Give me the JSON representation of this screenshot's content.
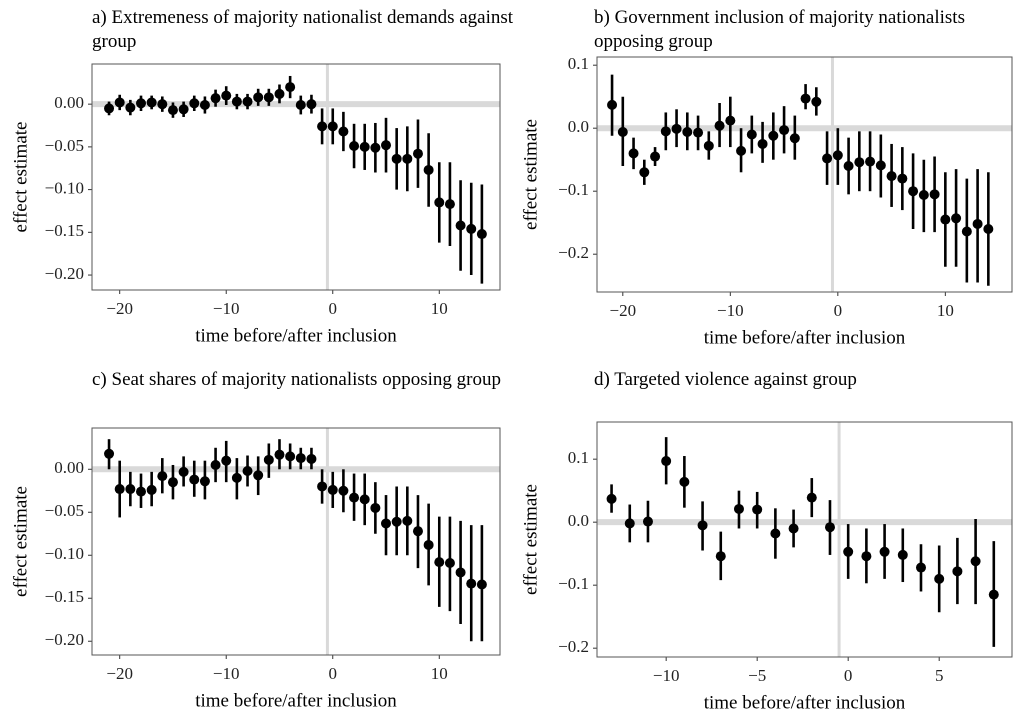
{
  "chart_data": [
    {
      "type": "errorbar",
      "title": "a) Extremeness of majority nationalist demands against group",
      "xlabel": "time before/after inclusion",
      "ylabel": "effect estimate",
      "color": "#000000",
      "ref_color": "#d9d9d9",
      "hline": 0,
      "vline": -0.5,
      "x": [
        -21,
        -20,
        -19,
        -18,
        -17,
        -16,
        -15,
        -14,
        -13,
        -12,
        -11,
        -10,
        -9,
        -8,
        -7,
        -6,
        -5,
        -4,
        -3,
        -2,
        -1,
        0,
        1,
        2,
        3,
        4,
        5,
        6,
        7,
        8,
        9,
        10,
        11,
        12,
        13,
        14
      ],
      "values": [
        -0.005,
        0.002,
        -0.004,
        0.001,
        0.002,
        0.0,
        -0.007,
        -0.006,
        0.001,
        -0.001,
        0.007,
        0.01,
        0.003,
        0.003,
        0.008,
        0.008,
        0.012,
        0.02,
        -0.001,
        0.0,
        -0.026,
        -0.026,
        -0.032,
        -0.049,
        -0.05,
        -0.051,
        -0.048,
        -0.064,
        -0.064,
        -0.058,
        -0.077,
        -0.115,
        -0.117,
        -0.142,
        -0.146,
        -0.152
      ],
      "lower": [
        -0.013,
        -0.007,
        -0.013,
        -0.008,
        -0.006,
        -0.009,
        -0.016,
        -0.015,
        -0.008,
        -0.011,
        -0.003,
        -0.001,
        -0.006,
        -0.006,
        -0.002,
        -0.002,
        0.001,
        0.007,
        -0.012,
        -0.011,
        -0.047,
        -0.047,
        -0.055,
        -0.075,
        -0.077,
        -0.08,
        -0.08,
        -0.1,
        -0.102,
        -0.098,
        -0.12,
        -0.162,
        -0.166,
        -0.195,
        -0.2,
        -0.21
      ],
      "upper": [
        0.003,
        0.011,
        0.005,
        0.01,
        0.01,
        0.009,
        0.002,
        0.003,
        0.01,
        0.009,
        0.017,
        0.021,
        0.012,
        0.012,
        0.018,
        0.018,
        0.023,
        0.033,
        0.01,
        0.011,
        -0.005,
        -0.005,
        -0.009,
        -0.023,
        -0.023,
        -0.022,
        -0.016,
        -0.028,
        -0.026,
        -0.018,
        -0.034,
        -0.068,
        -0.068,
        -0.089,
        -0.092,
        -0.094
      ],
      "xlim": [
        -22.6,
        15.7
      ],
      "ylim": [
        -0.2175,
        0.047
      ],
      "xticks": [
        {
          "value": -20,
          "label": "−20"
        },
        {
          "value": -10,
          "label": "−10"
        },
        {
          "value": 0,
          "label": "0"
        },
        {
          "value": 10,
          "label": "10"
        }
      ],
      "yticks": [
        {
          "value": 0,
          "label": "0.00"
        },
        {
          "value": -0.05,
          "label": "−0.05"
        },
        {
          "value": -0.1,
          "label": "−0.10"
        },
        {
          "value": -0.15,
          "label": "−0.15"
        },
        {
          "value": -0.2,
          "label": "−0.20"
        }
      ]
    },
    {
      "type": "errorbar",
      "title": "b) Government inclusion of majority nationalists opposing group",
      "xlabel": "time before/after inclusion",
      "ylabel": "effect estimate",
      "color": "#000000",
      "ref_color": "#d9d9d9",
      "hline": 0,
      "vline": -0.5,
      "x": [
        -21,
        -20,
        -19,
        -18,
        -17,
        -16,
        -15,
        -14,
        -13,
        -12,
        -11,
        -10,
        -9,
        -8,
        -7,
        -6,
        -5,
        -4,
        -3,
        -2,
        -1,
        0,
        1,
        2,
        3,
        4,
        5,
        6,
        7,
        8,
        9,
        10,
        11,
        12,
        13,
        14
      ],
      "values": [
        0.037,
        -0.006,
        -0.04,
        -0.07,
        -0.045,
        -0.005,
        -0.001,
        -0.006,
        -0.007,
        -0.028,
        0.004,
        0.012,
        -0.036,
        -0.01,
        -0.025,
        -0.012,
        -0.003,
        -0.016,
        0.047,
        0.042,
        -0.048,
        -0.043,
        -0.06,
        -0.054,
        -0.053,
        -0.059,
        -0.076,
        -0.08,
        -0.1,
        -0.106,
        -0.105,
        -0.145,
        -0.143,
        -0.164,
        -0.152,
        -0.16
      ],
      "lower": [
        -0.012,
        -0.06,
        -0.065,
        -0.09,
        -0.06,
        -0.035,
        -0.03,
        -0.035,
        -0.035,
        -0.05,
        -0.03,
        -0.03,
        -0.07,
        -0.04,
        -0.055,
        -0.05,
        -0.04,
        -0.05,
        0.03,
        0.02,
        -0.09,
        -0.09,
        -0.105,
        -0.1,
        -0.1,
        -0.11,
        -0.125,
        -0.13,
        -0.16,
        -0.165,
        -0.165,
        -0.22,
        -0.22,
        -0.245,
        -0.245,
        -0.25
      ],
      "upper": [
        0.085,
        0.05,
        -0.015,
        -0.05,
        -0.03,
        0.025,
        0.03,
        0.025,
        0.02,
        -0.005,
        0.04,
        0.05,
        0.0,
        0.02,
        0.01,
        0.025,
        0.035,
        0.02,
        0.07,
        0.065,
        -0.005,
        0.0,
        -0.015,
        -0.005,
        -0.005,
        -0.01,
        -0.025,
        -0.03,
        -0.04,
        -0.05,
        -0.045,
        -0.07,
        -0.065,
        -0.08,
        -0.065,
        -0.07
      ],
      "xlim": [
        -22.4,
        16.2
      ],
      "ylim": [
        -0.26,
        0.113
      ],
      "xticks": [
        {
          "value": -20,
          "label": "−20"
        },
        {
          "value": -10,
          "label": "−10"
        },
        {
          "value": 0,
          "label": "0"
        },
        {
          "value": 10,
          "label": "10"
        }
      ],
      "yticks": [
        {
          "value": 0.1,
          "label": "0.1"
        },
        {
          "value": 0,
          "label": "0.0"
        },
        {
          "value": -0.1,
          "label": "−0.1"
        },
        {
          "value": -0.2,
          "label": "−0.2"
        }
      ]
    },
    {
      "type": "errorbar",
      "title": "c) Seat shares of majority nationalists opposing group",
      "xlabel": "time before/after inclusion",
      "ylabel": "effect estimate",
      "color": "#000000",
      "ref_color": "#d9d9d9",
      "hline": 0,
      "vline": -0.5,
      "x": [
        -21,
        -20,
        -19,
        -18,
        -17,
        -16,
        -15,
        -14,
        -13,
        -12,
        -11,
        -10,
        -9,
        -8,
        -7,
        -6,
        -5,
        -4,
        -3,
        -2,
        -1,
        0,
        1,
        2,
        3,
        4,
        5,
        6,
        7,
        8,
        9,
        10,
        11,
        12,
        13,
        14
      ],
      "values": [
        0.018,
        -0.023,
        -0.023,
        -0.026,
        -0.024,
        -0.008,
        -0.015,
        -0.003,
        -0.012,
        -0.014,
        0.005,
        0.01,
        -0.01,
        -0.002,
        -0.007,
        0.011,
        0.017,
        0.015,
        0.013,
        0.012,
        -0.02,
        -0.024,
        -0.025,
        -0.033,
        -0.035,
        -0.045,
        -0.063,
        -0.061,
        -0.06,
        -0.072,
        -0.088,
        -0.108,
        -0.109,
        -0.12,
        -0.133,
        -0.134
      ],
      "lower": [
        0.0,
        -0.056,
        -0.043,
        -0.045,
        -0.043,
        -0.028,
        -0.035,
        -0.02,
        -0.032,
        -0.035,
        -0.015,
        -0.015,
        -0.035,
        -0.02,
        -0.03,
        -0.01,
        0.0,
        0.0,
        0.0,
        0.0,
        -0.04,
        -0.045,
        -0.05,
        -0.06,
        -0.065,
        -0.075,
        -0.1,
        -0.1,
        -0.1,
        -0.115,
        -0.135,
        -0.16,
        -0.165,
        -0.18,
        -0.2,
        -0.2
      ],
      "upper": [
        0.035,
        0.01,
        -0.003,
        -0.005,
        -0.003,
        0.013,
        0.005,
        0.015,
        0.01,
        0.01,
        0.025,
        0.033,
        0.013,
        0.016,
        0.015,
        0.03,
        0.035,
        0.03,
        0.025,
        0.025,
        0.0,
        -0.003,
        0.0,
        -0.005,
        -0.005,
        -0.015,
        -0.03,
        -0.02,
        -0.02,
        -0.03,
        -0.04,
        -0.055,
        -0.055,
        -0.06,
        -0.065,
        -0.065
      ],
      "xlim": [
        -22.6,
        15.7
      ],
      "ylim": [
        -0.216,
        0.048
      ],
      "xticks": [
        {
          "value": -20,
          "label": "−20"
        },
        {
          "value": -10,
          "label": "−10"
        },
        {
          "value": 0,
          "label": "0"
        },
        {
          "value": 10,
          "label": "10"
        }
      ],
      "yticks": [
        {
          "value": 0,
          "label": "0.00"
        },
        {
          "value": -0.05,
          "label": "−0.05"
        },
        {
          "value": -0.1,
          "label": "−0.10"
        },
        {
          "value": -0.15,
          "label": "−0.15"
        },
        {
          "value": -0.2,
          "label": "−0.20"
        }
      ]
    },
    {
      "type": "errorbar",
      "title": "d) Targeted violence against group",
      "xlabel": "time before/after inclusion",
      "ylabel": "effect estimate",
      "color": "#000000",
      "ref_color": "#d9d9d9",
      "hline": 0,
      "vline": -0.5,
      "x": [
        -13,
        -12,
        -11,
        -10,
        -9,
        -8,
        -7,
        -6,
        -5,
        -4,
        -3,
        -2,
        -1,
        0,
        1,
        2,
        3,
        4,
        5,
        6,
        7,
        8
      ],
      "values": [
        0.037,
        -0.002,
        0.001,
        0.097,
        0.064,
        -0.005,
        -0.054,
        0.021,
        0.02,
        -0.018,
        -0.01,
        0.039,
        -0.008,
        -0.047,
        -0.054,
        -0.047,
        -0.052,
        -0.072,
        -0.09,
        -0.078,
        -0.062,
        -0.115
      ],
      "lower": [
        0.015,
        -0.032,
        -0.032,
        0.06,
        0.023,
        -0.045,
        -0.092,
        -0.01,
        -0.01,
        -0.058,
        -0.04,
        0.008,
        -0.052,
        -0.09,
        -0.097,
        -0.09,
        -0.095,
        -0.11,
        -0.143,
        -0.13,
        -0.13,
        -0.198
      ],
      "upper": [
        0.06,
        0.028,
        0.034,
        0.135,
        0.105,
        0.033,
        -0.015,
        0.05,
        0.048,
        0.022,
        0.02,
        0.07,
        0.035,
        -0.003,
        -0.01,
        -0.003,
        -0.01,
        -0.035,
        -0.037,
        -0.025,
        0.005,
        -0.03
      ],
      "xlim": [
        -13.8,
        9.0
      ],
      "ylim": [
        -0.214,
        0.159
      ],
      "xticks": [
        {
          "value": -10,
          "label": "−10"
        },
        {
          "value": -5,
          "label": "−5"
        },
        {
          "value": 0,
          "label": "0"
        },
        {
          "value": 5,
          "label": "5"
        }
      ],
      "yticks": [
        {
          "value": 0.1,
          "label": "0.1"
        },
        {
          "value": 0,
          "label": "0.0"
        },
        {
          "value": -0.1,
          "label": "−0.1"
        },
        {
          "value": -0.2,
          "label": "−0.2"
        }
      ]
    }
  ]
}
